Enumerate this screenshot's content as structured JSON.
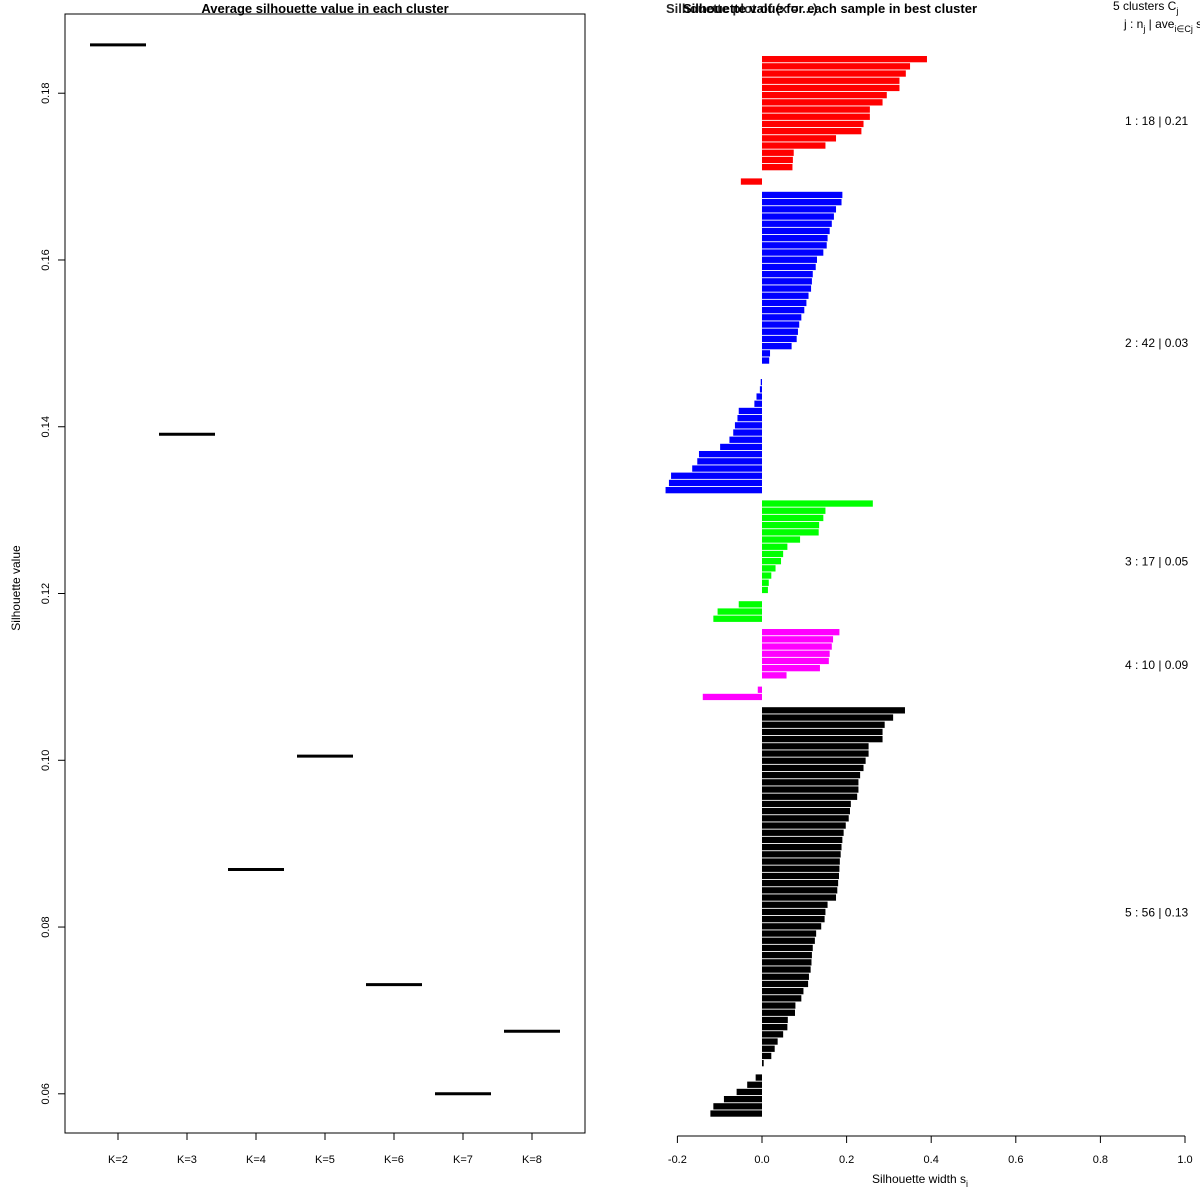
{
  "colors": {
    "cluster1": "#ff0000",
    "cluster2": "#0000ff",
    "cluster3": "#00ff00",
    "cluster4": "#ff00ff",
    "cluster5": "#000000",
    "axis": "#000000"
  },
  "chart_data": [
    {
      "type": "scatter",
      "marker": "horizontal-segment",
      "title": "Average silhouette value in each cluster",
      "xlabel": "",
      "ylabel": "Silhouette value",
      "categories": [
        "K=2",
        "K=3",
        "K=4",
        "K=5",
        "K=6",
        "K=7",
        "K=8"
      ],
      "values": [
        0.1858,
        0.1391,
        0.0869,
        0.1005,
        0.0731,
        0.06,
        0.0675
      ],
      "yticks": [
        0.06,
        0.08,
        0.1,
        0.12,
        0.14,
        0.16,
        0.18
      ],
      "ytick_labels": [
        "0.06",
        "0.08",
        "0.10",
        "0.12",
        "0.14",
        "0.16",
        "0.18"
      ],
      "ylim": [
        0.0553,
        0.1895
      ]
    },
    {
      "type": "bar",
      "orientation": "horizontal",
      "title": "Silhouette value for each sample in best cluster",
      "overlap_text": "Silhouette plot of (x = ...)",
      "xlabel": "Silhouette width s",
      "xlabel_sub": "i",
      "xlim": [
        -0.2,
        1.0
      ],
      "xticks": [
        -0.2,
        0.0,
        0.2,
        0.4,
        0.6,
        0.8,
        1.0
      ],
      "xtick_labels": [
        "-0.2",
        "0.0",
        "0.2",
        "0.4",
        "0.6",
        "0.8",
        "1.0"
      ],
      "header": {
        "line1": "5  clusters  C",
        "line1_sub": "j",
        "line2": "j :  n",
        "line2_sub": "j",
        "line2_tail": " | ave",
        "line2_sub2": "i∈Cj",
        "line2_end": "  s",
        "line2_end_sub": "i"
      },
      "clusters": [
        {
          "id": 1,
          "size": 18,
          "avg": 0.21,
          "label": "1 :  18  |  0.21",
          "color_key": "cluster1",
          "values": [
            0.39,
            0.35,
            0.34,
            0.325,
            0.325,
            0.295,
            0.285,
            0.255,
            0.255,
            0.24,
            0.235,
            0.175,
            0.15,
            0.075,
            0.073,
            0.072,
            0.0,
            -0.05
          ]
        },
        {
          "id": 2,
          "size": 42,
          "avg": 0.03,
          "label": "2 :  42  |  0.03",
          "color_key": "cluster2",
          "values": [
            0.19,
            0.188,
            0.175,
            0.17,
            0.165,
            0.16,
            0.155,
            0.153,
            0.145,
            0.13,
            0.127,
            0.12,
            0.118,
            0.116,
            0.11,
            0.105,
            0.1,
            0.093,
            0.088,
            0.085,
            0.082,
            0.07,
            0.019,
            0.017,
            0.0,
            0.0,
            -0.003,
            -0.005,
            -0.013,
            -0.018,
            -0.055,
            -0.058,
            -0.064,
            -0.068,
            -0.077,
            -0.099,
            -0.149,
            -0.153,
            -0.165,
            -0.215,
            -0.22,
            -0.228
          ]
        },
        {
          "id": 3,
          "size": 17,
          "avg": 0.05,
          "label": "3 :  17  |  0.05",
          "color_key": "cluster3",
          "values": [
            0.262,
            0.15,
            0.145,
            0.135,
            0.134,
            0.09,
            0.06,
            0.05,
            0.045,
            0.032,
            0.022,
            0.016,
            0.014,
            0.0,
            -0.055,
            -0.105,
            -0.115
          ]
        },
        {
          "id": 4,
          "size": 10,
          "avg": 0.09,
          "label": "4 :  10  |  0.09",
          "color_key": "cluster4",
          "values": [
            0.183,
            0.168,
            0.165,
            0.16,
            0.158,
            0.137,
            0.058,
            0.0,
            -0.01,
            -0.14
          ]
        },
        {
          "id": 5,
          "size": 56,
          "avg": 0.13,
          "label": "5 :  56  |  0.13",
          "color_key": "cluster5",
          "values": [
            0.338,
            0.31,
            0.29,
            0.285,
            0.285,
            0.252,
            0.252,
            0.245,
            0.24,
            0.232,
            0.228,
            0.228,
            0.225,
            0.21,
            0.208,
            0.205,
            0.198,
            0.193,
            0.19,
            0.188,
            0.186,
            0.184,
            0.183,
            0.182,
            0.18,
            0.178,
            0.175,
            0.155,
            0.15,
            0.148,
            0.14,
            0.128,
            0.125,
            0.12,
            0.118,
            0.117,
            0.115,
            0.111,
            0.109,
            0.098,
            0.093,
            0.079,
            0.078,
            0.061,
            0.06,
            0.05,
            0.037,
            0.03,
            0.022,
            0.004,
            0.0,
            -0.015,
            -0.035,
            -0.06,
            -0.09,
            -0.115,
            -0.122
          ]
        }
      ]
    }
  ]
}
